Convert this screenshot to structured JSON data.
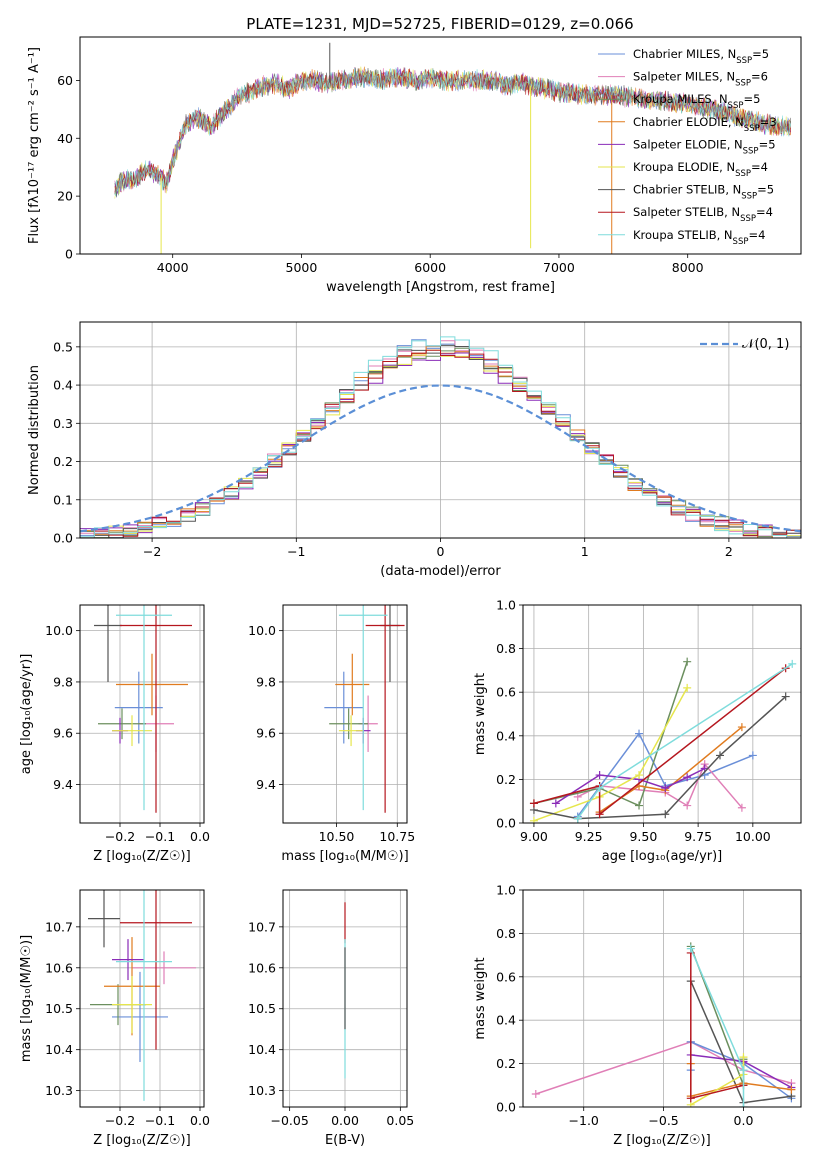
{
  "title": "PLATE=1231, MJD=52725, FIBERID=0129, z=0.066",
  "colors": {
    "c0": "#6a8fd8",
    "c1": "#e07fb7",
    "c2": "#6b8f5e",
    "c3": "#e07b1f",
    "c4": "#8a2cb8",
    "c5": "#e6e64d",
    "c6": "#555555",
    "c7": "#b5171f",
    "c8": "#7fdcdc"
  },
  "chart_data": [
    {
      "id": "spectrum",
      "type": "line",
      "xlabel": "wavelength [Angstrom, rest frame]",
      "ylabel": "Flux [f$_\\lambda$10$^{-17}$ erg cm$^{-2}$ s$^{-1}$ A$^{-1}$]",
      "ylabel_display": "Flux [fλ10⁻¹⁷ erg cm⁻² s⁻¹ A⁻¹]",
      "xlim": [
        3280,
        8880
      ],
      "ylim": [
        0,
        75
      ],
      "xticks": [
        4000,
        5000,
        6000,
        7000,
        8000
      ],
      "yticks": [
        0,
        20,
        40,
        60
      ],
      "legend_loc": "top-right",
      "series": [
        {
          "name": "Chabrier MILES, N$_{SSP}$=5",
          "label": "Chabrier MILES, N",
          "sub": "SSP",
          "rest": "=5",
          "color": "c0"
        },
        {
          "name": "Salpeter MILES, N$_{SSP}$=6",
          "label": "Salpeter MILES, N",
          "sub": "SSP",
          "rest": "=6",
          "color": "c1"
        },
        {
          "name": "Kroupa MILES, N$_{SSP}$=5",
          "label": "Kroupa MILES, N",
          "sub": "SSP",
          "rest": "=5",
          "color": "c2"
        },
        {
          "name": "Chabrier ELODIE, N$_{SSP}$=3",
          "label": "Chabrier ELODIE, N",
          "sub": "SSP",
          "rest": "=3",
          "color": "c3"
        },
        {
          "name": "Salpeter ELODIE, N$_{SSP}$=5",
          "label": "Salpeter ELODIE, N",
          "sub": "SSP",
          "rest": "=5",
          "color": "c4"
        },
        {
          "name": "Kroupa ELODIE, N$_{SSP}$=4",
          "label": "Kroupa ELODIE, N",
          "sub": "SSP",
          "rest": "=4",
          "color": "c5"
        },
        {
          "name": "Chabrier STELIB, N$_{SSP}$=5",
          "label": "Chabrier STELIB, N",
          "sub": "SSP",
          "rest": "=5",
          "color": "c6"
        },
        {
          "name": "Salpeter STELIB, N$_{SSP}$=4",
          "label": "Salpeter STELIB, N",
          "sub": "SSP",
          "rest": "=4",
          "color": "c7"
        },
        {
          "name": "Kroupa STELIB, N$_{SSP}$=4",
          "label": "Kroupa STELIB, N",
          "sub": "SSP",
          "rest": "=4",
          "color": "c8"
        }
      ],
      "continuum": [
        [
          3550,
          22
        ],
        [
          3600,
          25
        ],
        [
          3700,
          26
        ],
        [
          3800,
          29
        ],
        [
          3900,
          27
        ],
        [
          3950,
          24
        ],
        [
          4000,
          32
        ],
        [
          4100,
          45
        ],
        [
          4200,
          47
        ],
        [
          4300,
          44
        ],
        [
          4400,
          49
        ],
        [
          4500,
          54
        ],
        [
          4600,
          56
        ],
        [
          4700,
          58
        ],
        [
          4800,
          59
        ],
        [
          4900,
          57
        ],
        [
          5000,
          60
        ],
        [
          5100,
          60
        ],
        [
          5200,
          59
        ],
        [
          5300,
          60
        ],
        [
          5400,
          61
        ],
        [
          5500,
          61
        ],
        [
          5600,
          60
        ],
        [
          5700,
          61
        ],
        [
          5800,
          61
        ],
        [
          5900,
          60
        ],
        [
          6000,
          61
        ],
        [
          6100,
          60
        ],
        [
          6200,
          60
        ],
        [
          6300,
          60
        ],
        [
          6400,
          60
        ],
        [
          6500,
          60
        ],
        [
          6600,
          58
        ],
        [
          6700,
          59
        ],
        [
          6800,
          58
        ],
        [
          6900,
          57
        ],
        [
          7000,
          56
        ],
        [
          7200,
          55
        ],
        [
          7400,
          55
        ],
        [
          7600,
          54
        ],
        [
          7800,
          53
        ],
        [
          8000,
          52
        ],
        [
          8200,
          50
        ],
        [
          8400,
          47
        ],
        [
          8600,
          45
        ],
        [
          8800,
          44
        ]
      ],
      "drops": [
        {
          "x": 3910,
          "y": 0,
          "color": "c5"
        },
        {
          "x": 5220,
          "y": 73,
          "color": "c6"
        },
        {
          "x": 6780,
          "y": 2,
          "color": "c5"
        },
        {
          "x": 7410,
          "y": 0,
          "color": "c3"
        }
      ]
    },
    {
      "id": "residuals",
      "type": "histogram",
      "xlabel": "(data-model)/error",
      "ylabel": "Normed distribution",
      "xlim": [
        -2.5,
        2.5
      ],
      "ylim": [
        0,
        0.565
      ],
      "xticks": [
        -2,
        -1,
        0,
        1,
        2
      ],
      "yticks": [
        0.0,
        0.1,
        0.2,
        0.3,
        0.4,
        0.5
      ],
      "xtick_labels": [
        "−2",
        "−1",
        "0",
        "1",
        "2"
      ],
      "bin_width": 0.1,
      "legend": {
        "label": "𝒩(0, 1)",
        "loc": "top-right"
      },
      "reference_curve": {
        "name": "𝒩(0, 1)",
        "type": "gaussian",
        "mu": 0,
        "sigma": 1,
        "color": "#5b8fd6"
      },
      "histograms": [
        {
          "color": "c0",
          "peak": 0.51,
          "sigma": 0.84
        },
        {
          "color": "c1",
          "peak": 0.5,
          "sigma": 0.86
        },
        {
          "color": "c2",
          "peak": 0.49,
          "sigma": 0.87
        },
        {
          "color": "c3",
          "peak": 0.5,
          "sigma": 0.85
        },
        {
          "color": "c4",
          "peak": 0.48,
          "sigma": 0.87
        },
        {
          "color": "c5",
          "peak": 0.49,
          "sigma": 0.86
        },
        {
          "color": "c6",
          "peak": 0.5,
          "sigma": 0.85
        },
        {
          "color": "c7",
          "peak": 0.49,
          "sigma": 0.86
        },
        {
          "color": "c8",
          "peak": 0.52,
          "sigma": 0.83
        }
      ]
    },
    {
      "id": "age_vs_z",
      "type": "scatter",
      "xlabel": "Z [log$_{10}$(Z/Z$_\\odot$)]",
      "xlabel_display": "Z [log₁₀(Z/Z☉)]",
      "ylabel": "age  [log$_{10}$(age/yr)]",
      "ylabel_display": "age  [log₁₀(age/yr)]",
      "xlim": [
        -0.3,
        0.01
      ],
      "ylim": [
        9.25,
        10.1
      ],
      "xticks": [
        -0.2,
        -0.1,
        0.0
      ],
      "yticks": [
        9.4,
        9.6,
        9.8,
        10.0
      ],
      "xtick_labels": [
        "−0.2",
        "−0.1",
        "0.0"
      ],
      "ytick_labels": [
        "9.4",
        "9.6",
        "9.8",
        "10.0"
      ],
      "points": [
        {
          "x": -0.153,
          "y": 9.7,
          "xerr": 0.06,
          "yerr": 0.14,
          "color": "c0"
        },
        {
          "x": -0.11,
          "y": 9.637,
          "xerr": 0.045,
          "yerr": 0.11,
          "color": "c1"
        },
        {
          "x": -0.195,
          "y": 9.637,
          "xerr": 0.06,
          "yerr": 0.06,
          "color": "c2"
        },
        {
          "x": -0.12,
          "y": 9.79,
          "xerr": 0.09,
          "yerr": 0.12,
          "color": "c3"
        },
        {
          "x": -0.2,
          "y": 9.61,
          "xerr": 0.02,
          "yerr": 0.05,
          "color": "c4"
        },
        {
          "x": -0.17,
          "y": 9.61,
          "xerr": 0.05,
          "yerr": 0.06,
          "color": "c5"
        },
        {
          "x": -0.23,
          "y": 10.02,
          "xerr": 0.035,
          "yerr": 0.22,
          "color": "c6"
        },
        {
          "x": -0.11,
          "y": 10.02,
          "xerr": 0.09,
          "yerr": 0.73,
          "color": "c7"
        },
        {
          "x": -0.14,
          "y": 10.06,
          "xerr": 0.07,
          "yerr": 0.76,
          "color": "c8"
        }
      ]
    },
    {
      "id": "age_vs_mass",
      "type": "scatter",
      "xlabel": "mass [log$_{10}$(M/M$_\\odot$)]",
      "xlabel_display": "mass [log₁₀(M/M☉)]",
      "xlim": [
        10.28,
        10.79
      ],
      "ylim": [
        9.25,
        10.1
      ],
      "xticks": [
        10.5,
        10.75
      ],
      "yticks": [
        9.4,
        9.6,
        9.8,
        10.0
      ],
      "xtick_labels": [
        "10.50",
        "10.75"
      ],
      "ytick_labels": [
        "9.4",
        "9.6",
        "9.8",
        "10.0"
      ],
      "points": [
        {
          "x": 10.53,
          "y": 9.7,
          "xerr": 0.08,
          "yerr": 0.14,
          "color": "c0"
        },
        {
          "x": 10.63,
          "y": 9.637,
          "xerr": 0.04,
          "yerr": 0.11,
          "color": "c1"
        },
        {
          "x": 10.55,
          "y": 9.637,
          "xerr": 0.08,
          "yerr": 0.06,
          "color": "c2"
        },
        {
          "x": 10.565,
          "y": 9.79,
          "xerr": 0.07,
          "yerr": 0.12,
          "color": "c3"
        },
        {
          "x": 10.61,
          "y": 9.61,
          "xerr": 0.03,
          "yerr": 0.05,
          "color": "c4"
        },
        {
          "x": 10.56,
          "y": 9.61,
          "xerr": 0.05,
          "yerr": 0.06,
          "color": "c5"
        },
        {
          "x": 10.72,
          "y": 10.02,
          "xerr": 0.04,
          "yerr": 0.22,
          "color": "c6"
        },
        {
          "x": 10.7,
          "y": 10.02,
          "xerr": 0.08,
          "yerr": 0.73,
          "color": "c7"
        },
        {
          "x": 10.61,
          "y": 10.06,
          "xerr": 0.1,
          "yerr": 0.76,
          "color": "c8"
        }
      ]
    },
    {
      "id": "weight_vs_age",
      "type": "line",
      "xlabel": "age  [log$_{10}$(age/yr)]",
      "xlabel_display": "age  [log₁₀(age/yr)]",
      "ylabel": "mass weight",
      "xlim": [
        8.95,
        10.22
      ],
      "ylim": [
        0,
        1
      ],
      "xticks": [
        9.0,
        9.25,
        9.5,
        9.75,
        10.0
      ],
      "yticks": [
        0.0,
        0.2,
        0.4,
        0.6,
        0.8,
        1.0
      ],
      "xtick_labels": [
        "9.00",
        "9.25",
        "9.50",
        "9.75",
        "10.00"
      ],
      "ytick_labels": [
        "0.0",
        "0.2",
        "0.4",
        "0.6",
        "0.8",
        "1.0"
      ],
      "series": [
        {
          "color": "c0",
          "x": [
            9.2,
            9.48,
            9.6,
            9.78,
            10.0
          ],
          "y": [
            0.03,
            0.41,
            0.17,
            0.22,
            0.31
          ]
        },
        {
          "color": "c1",
          "x": [
            9.2,
            9.3,
            9.6,
            9.7,
            9.78,
            9.95
          ],
          "y": [
            0.12,
            0.17,
            0.14,
            0.08,
            0.27,
            0.07
          ]
        },
        {
          "color": "c2",
          "x": [
            9.0,
            9.3,
            9.48,
            9.7
          ],
          "y": [
            0.09,
            0.16,
            0.08,
            0.74
          ]
        },
        {
          "color": "c3",
          "x": [
            9.3,
            9.48,
            9.6,
            9.95
          ],
          "y": [
            0.05,
            0.17,
            0.15,
            0.44
          ]
        },
        {
          "color": "c4",
          "x": [
            9.1,
            9.3,
            9.48,
            9.6,
            9.7,
            9.78
          ],
          "y": [
            0.09,
            0.22,
            0.2,
            0.16,
            0.21,
            0.25
          ]
        },
        {
          "color": "c5",
          "x": [
            9.0,
            9.3,
            9.48,
            9.7
          ],
          "y": [
            0.01,
            0.12,
            0.22,
            0.62
          ]
        },
        {
          "color": "c6",
          "x": [
            9.0,
            9.2,
            9.6,
            9.85,
            10.15
          ],
          "y": [
            0.06,
            0.02,
            0.04,
            0.31,
            0.58
          ]
        },
        {
          "color": "c7",
          "x": [
            9.0,
            9.3,
            9.3,
            10.15
          ],
          "y": [
            0.09,
            0.17,
            0.04,
            0.71
          ]
        },
        {
          "color": "c8",
          "x": [
            9.2,
            9.3,
            10.18
          ],
          "y": [
            0.02,
            0.16,
            0.73
          ]
        }
      ]
    },
    {
      "id": "mass_vs_z",
      "type": "scatter",
      "xlabel": "Z [log$_{10}$(Z/Z$_\\odot$)]",
      "xlabel_display": "Z [log₁₀(Z/Z☉)]",
      "ylabel": "mass [log$_{10}$(M/M$_\\odot$)]",
      "ylabel_display": "mass [log₁₀(M/M☉)]",
      "xlim": [
        -0.3,
        0.01
      ],
      "ylim": [
        10.26,
        10.79
      ],
      "xticks": [
        -0.2,
        -0.1,
        0.0
      ],
      "yticks": [
        10.3,
        10.4,
        10.5,
        10.6,
        10.7
      ],
      "xtick_labels": [
        "−0.2",
        "−0.1",
        "0.0"
      ],
      "ytick_labels": [
        "10.3",
        "10.4",
        "10.5",
        "10.6",
        "10.7"
      ],
      "points": [
        {
          "x": -0.15,
          "y": 10.48,
          "xerr": 0.07,
          "yerr": 0.11,
          "color": "c0"
        },
        {
          "x": -0.09,
          "y": 10.6,
          "xerr": 0.08,
          "yerr": 0.04,
          "color": "c1"
        },
        {
          "x": -0.205,
          "y": 10.51,
          "xerr": 0.07,
          "yerr": 0.05,
          "color": "c2"
        },
        {
          "x": -0.17,
          "y": 10.555,
          "xerr": 0.07,
          "yerr": 0.12,
          "color": "c3"
        },
        {
          "x": -0.18,
          "y": 10.62,
          "xerr": 0.04,
          "yerr": 0.05,
          "color": "c4"
        },
        {
          "x": -0.17,
          "y": 10.51,
          "xerr": 0.05,
          "yerr": 0.07,
          "color": "c5"
        },
        {
          "x": -0.24,
          "y": 10.72,
          "xerr": 0.04,
          "yerr": 0.07,
          "color": "c6"
        },
        {
          "x": -0.11,
          "y": 10.71,
          "xerr": 0.09,
          "yerr": 0.31,
          "color": "c7"
        },
        {
          "x": -0.14,
          "y": 10.615,
          "xerr": 0.07,
          "yerr": 0.34,
          "color": "c8"
        }
      ]
    },
    {
      "id": "mass_vs_ebv",
      "type": "scatter",
      "xlabel": "E(B-V)",
      "xlim": [
        -0.056,
        0.056
      ],
      "ylim": [
        10.26,
        10.79
      ],
      "xticks": [
        -0.05,
        0.0,
        0.05
      ],
      "yticks": [
        10.3,
        10.4,
        10.5,
        10.6,
        10.7
      ],
      "xtick_labels": [
        "−0.05",
        "0.00",
        "0.05"
      ],
      "ytick_labels": [
        "10.3",
        "10.4",
        "10.5",
        "10.6",
        "10.7"
      ],
      "points": [
        {
          "x": 0.0,
          "y": 10.71,
          "xerr": 0,
          "yerr": 0.05,
          "color": "c7"
        },
        {
          "x": 0.0,
          "y": 10.5,
          "xerr": 0,
          "yerr": 0.17,
          "color": "c8"
        },
        {
          "x": 0.0,
          "y": 10.55,
          "xerr": 0,
          "yerr": 0.1,
          "color": "c6"
        }
      ]
    },
    {
      "id": "weight_vs_z",
      "type": "line",
      "xlabel": "Z [log$_{10}$(Z/Z$_\\odot$)]",
      "xlabel_display": "Z [log₁₀(Z/Z☉)]",
      "ylabel": "mass weight",
      "xlim": [
        -1.38,
        0.36
      ],
      "ylim": [
        0,
        1
      ],
      "xticks": [
        -1.0,
        -0.5,
        0.0
      ],
      "yticks": [
        0.0,
        0.2,
        0.4,
        0.6,
        0.8,
        1.0
      ],
      "xtick_labels": [
        "−1.0",
        "−0.5",
        "0.0"
      ],
      "ytick_labels": [
        "0.0",
        "0.2",
        "0.4",
        "0.6",
        "0.8",
        "1.0"
      ],
      "series": [
        {
          "color": "c1",
          "x": [
            -1.3,
            -0.33,
            0.0,
            0.3
          ],
          "y": [
            0.06,
            0.3,
            0.17,
            0.11
          ]
        },
        {
          "color": "c0",
          "x": [
            -0.33,
            -0.33,
            0.0,
            0.3
          ],
          "y": [
            0.17,
            0.3,
            0.2,
            0.04
          ]
        },
        {
          "color": "c4",
          "x": [
            -0.33,
            0.0,
            0.3
          ],
          "y": [
            0.24,
            0.21,
            0.09
          ]
        },
        {
          "color": "c2",
          "x": [
            -0.33,
            0.0,
            0.0
          ],
          "y": [
            0.74,
            0.1,
            0.22
          ]
        },
        {
          "color": "c6",
          "x": [
            -0.33,
            0.0,
            0.3
          ],
          "y": [
            0.58,
            0.02,
            0.05
          ]
        },
        {
          "color": "c3",
          "x": [
            -0.33,
            -0.33,
            0.0,
            0.3
          ],
          "y": [
            0.2,
            0.05,
            0.11,
            0.08
          ]
        },
        {
          "color": "c5",
          "x": [
            -0.33,
            0.0,
            0.0
          ],
          "y": [
            0.01,
            0.15,
            0.23
          ]
        },
        {
          "color": "c7",
          "x": [
            -0.33,
            -0.33,
            0.0
          ],
          "y": [
            0.71,
            0.04,
            0.1
          ]
        },
        {
          "color": "c8",
          "x": [
            -0.33,
            0.0,
            0.0
          ],
          "y": [
            0.73,
            0.17,
            0.0
          ]
        }
      ]
    }
  ]
}
